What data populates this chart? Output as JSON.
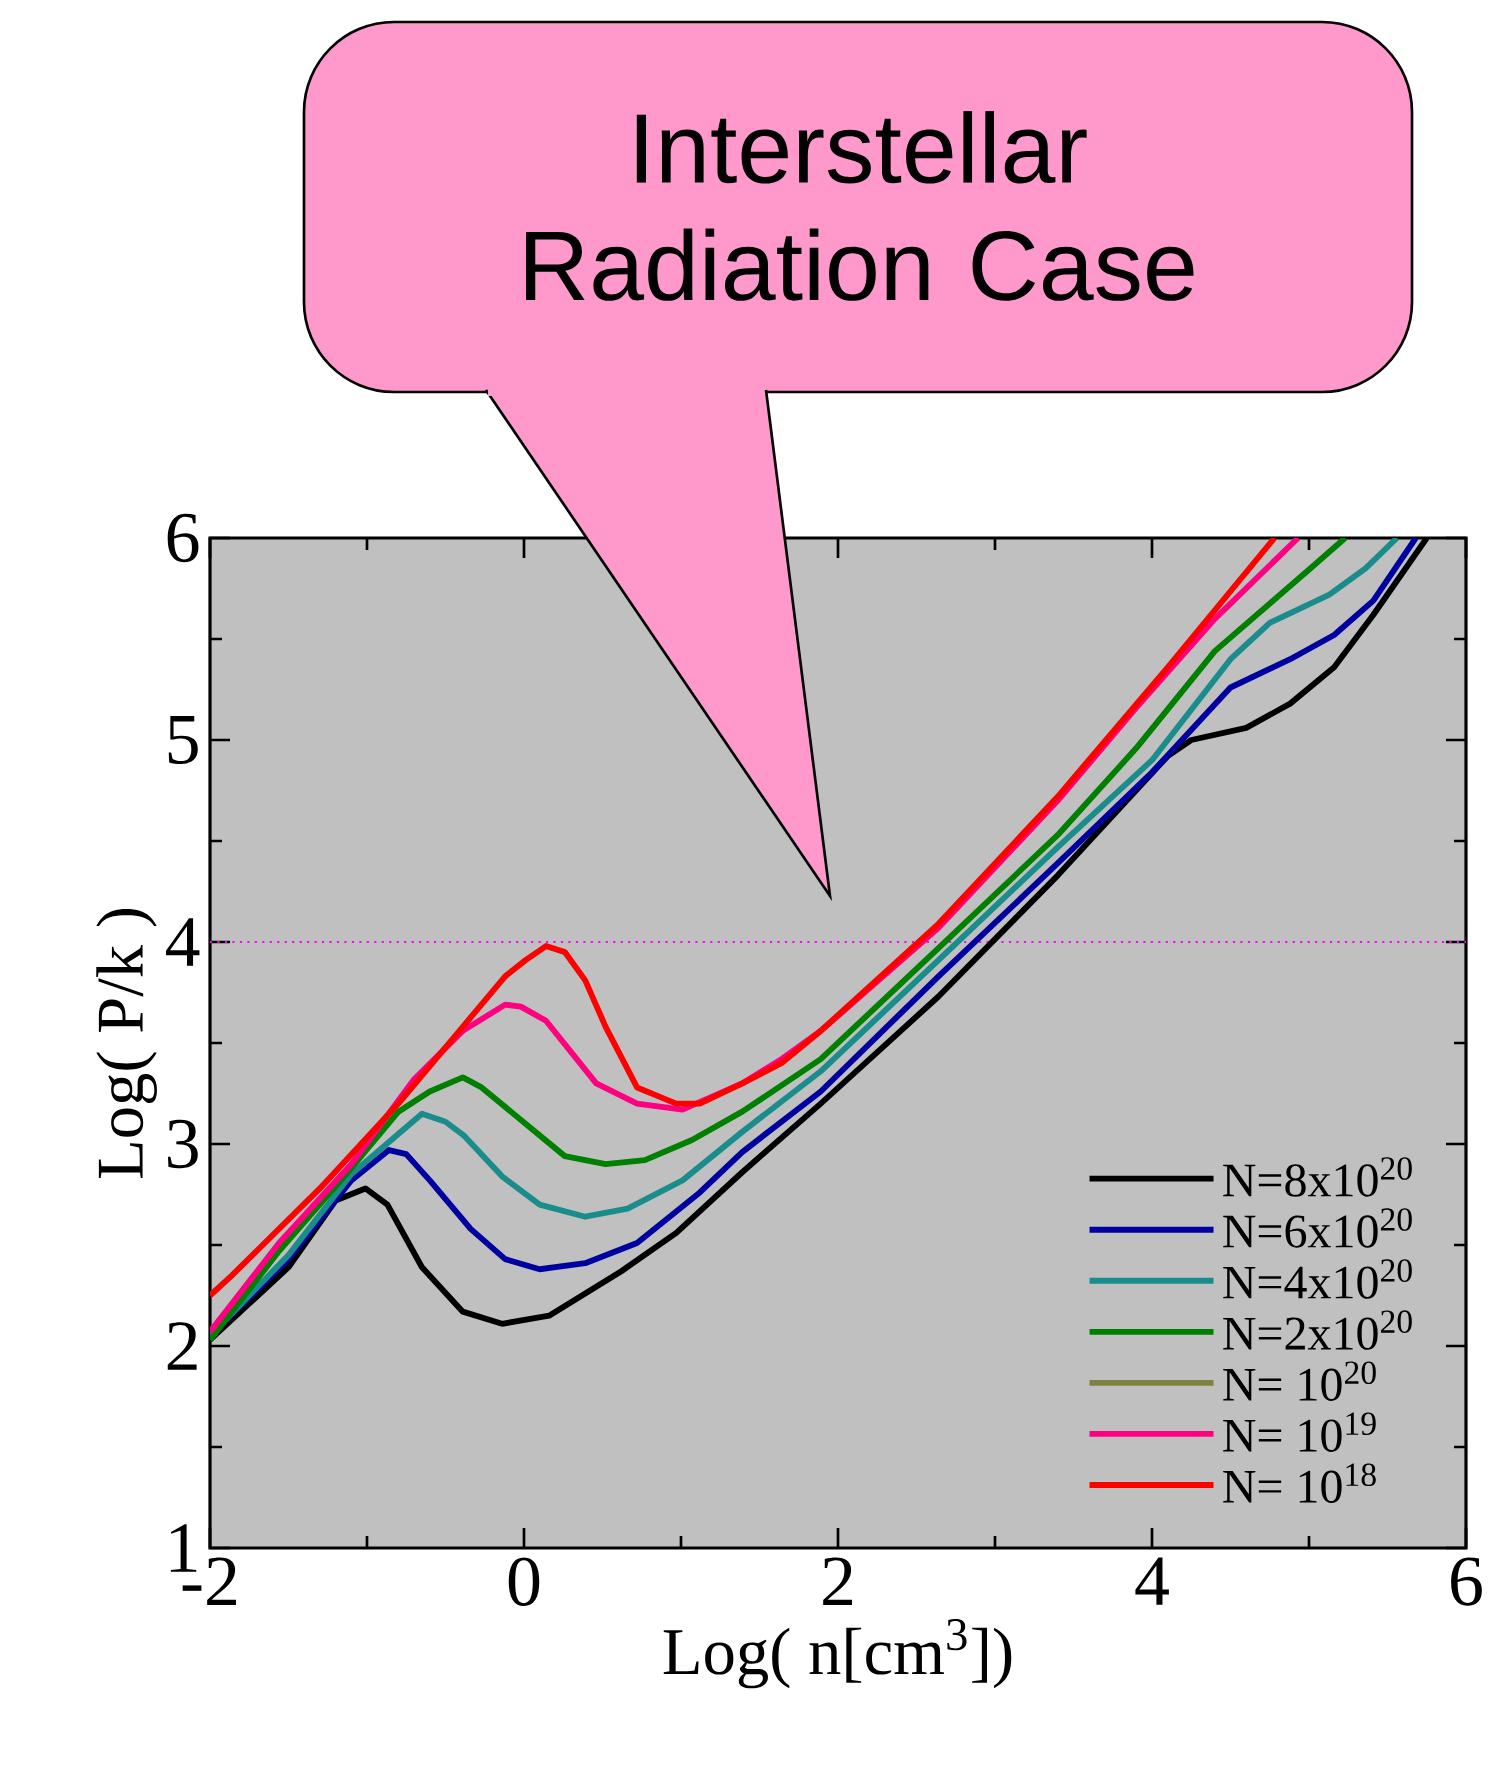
{
  "chart_data": {
    "type": "line",
    "xlabel": "Log( n[cm$^{3}$])",
    "ylabel": "Log( P/k )",
    "annotations": [
      "Interstellar Radiation Case"
    ],
    "xlim": [
      -2,
      6
    ],
    "ylim": [
      1,
      6
    ],
    "xticks": [
      -2,
      0,
      2,
      4,
      6
    ],
    "yticks": [
      1,
      2,
      3,
      4,
      5,
      6
    ],
    "legend": "bottom right",
    "line_style": "solid",
    "ref_lines": [
      {
        "axis": "y",
        "value": 4,
        "color": "#ff00ff",
        "line_style": "dotted"
      }
    ],
    "series": [
      {
        "name": "N=8x10$^{20}$",
        "color": "#000000",
        "x": [
          -2,
          -1.5,
          -1.2,
          -1.01,
          -0.87,
          -0.65,
          -0.39,
          -0.14,
          0.16,
          0.62,
          0.97,
          1.39,
          1.89,
          2.64,
          3.4,
          4.1,
          4.25,
          4.6,
          4.88,
          5.16,
          5.41,
          5.75
        ],
        "values": [
          2.03,
          2.39,
          2.72,
          2.78,
          2.7,
          2.39,
          2.17,
          2.11,
          2.15,
          2.37,
          2.56,
          2.86,
          3.2,
          3.73,
          4.33,
          4.92,
          5.0,
          5.06,
          5.18,
          5.36,
          5.62,
          6.0
        ]
      },
      {
        "name": "N=6x10$^{20}$",
        "color": "#0000a0",
        "x": [
          -2,
          -1.5,
          -1.1,
          -0.86,
          -0.75,
          -0.6,
          -0.34,
          -0.12,
          0.1,
          0.39,
          0.72,
          1.12,
          1.39,
          1.89,
          2.64,
          3.4,
          4.0,
          4.5,
          4.88,
          5.16,
          5.41,
          5.68
        ],
        "values": [
          2.05,
          2.43,
          2.82,
          2.97,
          2.95,
          2.82,
          2.58,
          2.43,
          2.38,
          2.41,
          2.51,
          2.76,
          2.96,
          3.26,
          3.83,
          4.39,
          4.84,
          5.26,
          5.4,
          5.52,
          5.69,
          6.0
        ]
      },
      {
        "name": "N=4x10$^{20}$",
        "color": "#1a8c8c",
        "x": [
          -2,
          -1.5,
          -1.1,
          -0.65,
          -0.5,
          -0.38,
          -0.14,
          0.1,
          0.39,
          0.66,
          1.01,
          1.39,
          1.89,
          2.64,
          3.4,
          4.0,
          4.5,
          4.75,
          5.13,
          5.36,
          5.56
        ],
        "values": [
          2.05,
          2.45,
          2.85,
          3.15,
          3.11,
          3.04,
          2.84,
          2.7,
          2.64,
          2.68,
          2.82,
          3.06,
          3.36,
          3.91,
          4.47,
          4.9,
          5.4,
          5.58,
          5.72,
          5.85,
          6.0
        ]
      },
      {
        "name": "N=2x10$^{20}$",
        "color": "#008000",
        "x": [
          -2,
          -1.56,
          -1.1,
          -0.8,
          -0.6,
          -0.39,
          -0.27,
          0.01,
          0.26,
          0.52,
          0.77,
          1.07,
          1.39,
          1.89,
          2.64,
          3.4,
          3.9,
          4.4,
          5.01,
          5.23
        ],
        "values": [
          2.03,
          2.47,
          2.88,
          3.16,
          3.26,
          3.33,
          3.28,
          3.1,
          2.94,
          2.9,
          2.92,
          3.02,
          3.16,
          3.42,
          3.97,
          4.53,
          4.96,
          5.44,
          5.85,
          6.0
        ]
      },
      {
        "name": "N= 10$^{20}$",
        "color": "#808040",
        "values": [
          null
        ]
      },
      {
        "name": "N= 10$^{19}$",
        "color": "#ff0080",
        "x": [
          -2,
          -1.56,
          -1.1,
          -0.7,
          -0.39,
          -0.12,
          -0.02,
          0.14,
          0.46,
          0.72,
          1.01,
          1.39,
          1.64,
          1.89,
          2.64,
          3.4,
          3.9,
          4.4,
          4.93
        ],
        "values": [
          2.07,
          2.51,
          2.9,
          3.32,
          3.56,
          3.69,
          3.68,
          3.61,
          3.3,
          3.2,
          3.17,
          3.3,
          3.42,
          3.56,
          4.07,
          4.7,
          5.16,
          5.6,
          6.0
        ]
      },
      {
        "name": "N= 10$^{18}$",
        "color": "#ff0000",
        "x": [
          -2,
          -1.86,
          -1.3,
          -0.8,
          -0.39,
          -0.12,
          0.01,
          0.14,
          0.26,
          0.39,
          0.52,
          0.72,
          0.97,
          1.12,
          1.39,
          1.64,
          1.89,
          2.64,
          3.4,
          4.1,
          4.78
        ],
        "values": [
          2.25,
          2.35,
          2.78,
          3.2,
          3.58,
          3.83,
          3.91,
          3.98,
          3.95,
          3.81,
          3.58,
          3.28,
          3.2,
          3.2,
          3.3,
          3.4,
          3.56,
          4.09,
          4.72,
          5.36,
          6.0
        ]
      }
    ]
  }
}
